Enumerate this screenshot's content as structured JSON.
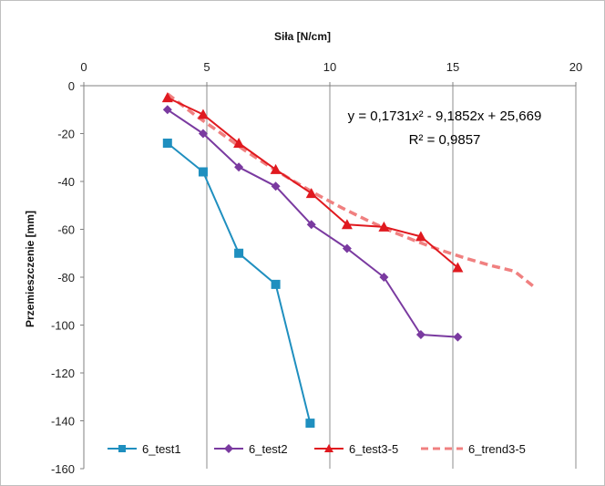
{
  "chart_data": {
    "type": "line",
    "title": "",
    "xlabel": "Siła [N/cm]",
    "ylabel": "Przemieszczenie [mm]",
    "xlim": [
      0,
      20
    ],
    "ylim": [
      -160,
      0
    ],
    "x_ticks": [
      0,
      5,
      10,
      15,
      20
    ],
    "y_ticks": [
      0,
      -20,
      -40,
      -60,
      -80,
      -100,
      -120,
      -140,
      -160
    ],
    "x_axis_position": "top",
    "grid": "vertical major gridlines",
    "legend_position": "bottom",
    "series": [
      {
        "name": "6_test1",
        "color": "#1f8fbf",
        "marker": "square",
        "line_style": "solid",
        "x": [
          3.4,
          4.85,
          6.3,
          7.8,
          9.2
        ],
        "y": [
          -24,
          -36,
          -70,
          -83,
          -141
        ]
      },
      {
        "name": "6_test2",
        "color": "#7a3aa0",
        "marker": "diamond",
        "line_style": "solid",
        "x": [
          3.4,
          4.85,
          6.3,
          7.8,
          9.25,
          10.7,
          12.2,
          13.7,
          15.2
        ],
        "y": [
          -10,
          -20,
          -34,
          -42,
          -58,
          -68,
          -80,
          -104,
          -105
        ]
      },
      {
        "name": "6_test3-5",
        "color": "#e0191f",
        "marker": "triangle",
        "line_style": "solid",
        "x": [
          3.4,
          4.85,
          6.3,
          7.8,
          9.25,
          10.7,
          12.2,
          13.7,
          15.2
        ],
        "y": [
          -5,
          -12,
          -24,
          -35,
          -45,
          -58,
          -59,
          -63,
          -76
        ]
      },
      {
        "name": "6_trend3-5",
        "color": "#f08080",
        "marker": "none",
        "line_style": "dashed",
        "x": [
          3.4,
          4.5,
          5.5,
          6.5,
          7.5,
          8.5,
          9.5,
          10.5,
          11.5,
          12.5,
          13.5,
          14.5,
          15.5,
          16.5,
          17.5,
          18.3
        ],
        "y": [
          -3.4,
          -12.1,
          -19.3,
          -26.7,
          -33.4,
          -39.7,
          -45.6,
          -51.1,
          -56.1,
          -60.8,
          -64.9,
          -68.7,
          -72.0,
          -75.0,
          -77.5,
          -84
        ]
      }
    ],
    "annotations": [
      "y = 0,1731x² - 9,1852x + 25,669",
      "R² = 0,9857"
    ]
  }
}
